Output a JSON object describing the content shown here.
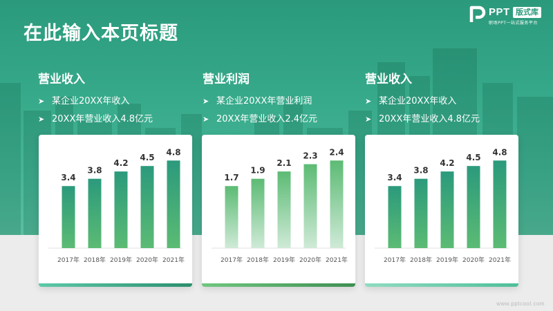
{
  "page": {
    "title": "在此输入本页标题",
    "watermark": "www.pptcool.com"
  },
  "logo": {
    "text": "PPT",
    "badge": "版式库",
    "tagline": "职场PPT一站式服务平台"
  },
  "sections": [
    {
      "heading": "营业收入",
      "bullets": [
        "某企业20XX年收入",
        "20XX年营业收入4.8亿元"
      ]
    },
    {
      "heading": "营业利润",
      "bullets": [
        "某企业20XX年营业利润",
        "20XX年营业收入2.4亿元"
      ]
    },
    {
      "heading": "营业收入",
      "bullets": [
        "某企业20XX年收入",
        "20XX年营业收入4.8亿元"
      ]
    }
  ],
  "colors": {
    "accent": "#2b9a7c",
    "bar_dark": "#2b9a7c",
    "bar_light": "#5cbb74",
    "bar_fade": "#cfead7"
  },
  "chart_data": [
    {
      "type": "bar",
      "categories": [
        "2017年",
        "2018年",
        "2019年",
        "2020年",
        "2021年"
      ],
      "values": [
        3.4,
        3.8,
        4.2,
        4.5,
        4.8
      ],
      "ylim": [
        0,
        5
      ],
      "style": "solid"
    },
    {
      "type": "bar",
      "categories": [
        "2017年",
        "2018年",
        "2019年",
        "2020年",
        "2021年"
      ],
      "values": [
        1.7,
        1.9,
        2.1,
        2.3,
        2.4
      ],
      "ylim": [
        0,
        2.5
      ],
      "style": "fade"
    },
    {
      "type": "bar",
      "categories": [
        "2017年",
        "2018年",
        "2019年",
        "2020年",
        "2021年"
      ],
      "values": [
        3.4,
        3.8,
        4.2,
        4.5,
        4.8
      ],
      "ylim": [
        0,
        5
      ],
      "style": "solid"
    }
  ]
}
